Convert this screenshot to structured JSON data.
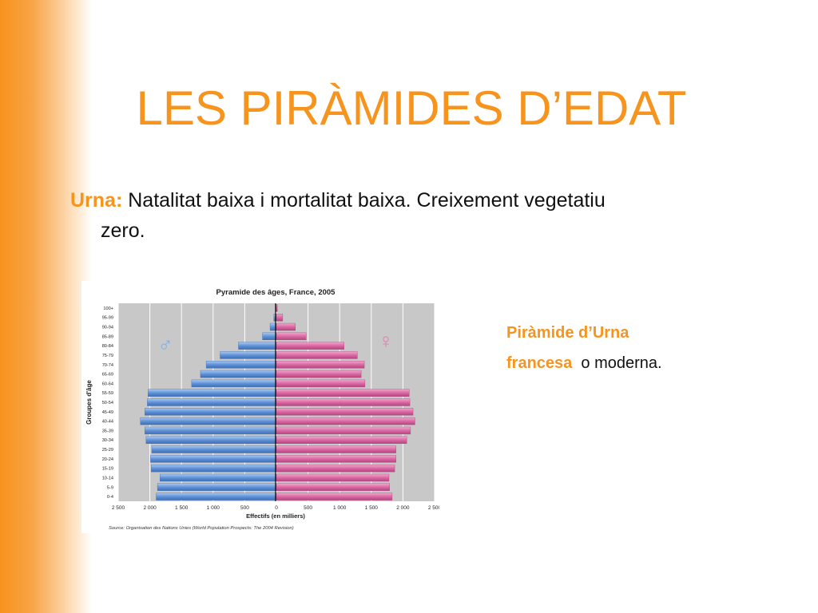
{
  "slide": {
    "title": "LES PIRÀMIDES D’EDAT",
    "bullet": {
      "keyword": "Urna:",
      "line1": "Natalitat baixa i mortalitat baixa. Creixement vegetatiu",
      "line2": "zero."
    },
    "caption": {
      "line1": "Piràmide d’Urna",
      "line2_highlight": "francesa",
      "line2_rest": "o moderna."
    },
    "colors": {
      "accent": "#f7941d",
      "male": "#5b8ed6",
      "female": "#d9649f"
    }
  },
  "chart_data": {
    "type": "bar",
    "orientation": "horizontal",
    "title": "Pyramide des âges, France, 2005",
    "xlabel": "Effectifs (en milliers)",
    "ylabel": "Groupes d'âge",
    "source": "Source: Organisation des Nations Unies (World Population Prospects: The 2004 Revision)",
    "xlim": [
      -2500,
      2500
    ],
    "x_ticks": [
      "2 500",
      "2 000",
      "1 500",
      "1 000",
      "500",
      "0",
      "500",
      "1 000",
      "1 500",
      "2 000",
      "2 500"
    ],
    "male_symbol": "♂",
    "female_symbol": "♀",
    "categories": [
      "100+",
      "95-99",
      "90-94",
      "85-89",
      "80-84",
      "75-79",
      "70-74",
      "65-69",
      "60-64",
      "55-59",
      "50-54",
      "45-49",
      "40-44",
      "35-39",
      "30-34",
      "25-29",
      "20-24",
      "15-19",
      "10-14",
      "5-9",
      "0-4"
    ],
    "series": [
      {
        "values": [
          5,
          40,
          100,
          220,
          600,
          890,
          1110,
          1200,
          1340,
          2030,
          2040,
          2080,
          2150,
          2080,
          2060,
          1970,
          1990,
          1980,
          1840,
          1880,
          1900
        ]
      },
      {
        "values": [
          15,
          100,
          300,
          470,
          1070,
          1280,
          1390,
          1340,
          1400,
          2100,
          2110,
          2160,
          2190,
          2120,
          2060,
          1890,
          1890,
          1870,
          1780,
          1790,
          1830
        ]
      }
    ],
    "grid": true
  }
}
